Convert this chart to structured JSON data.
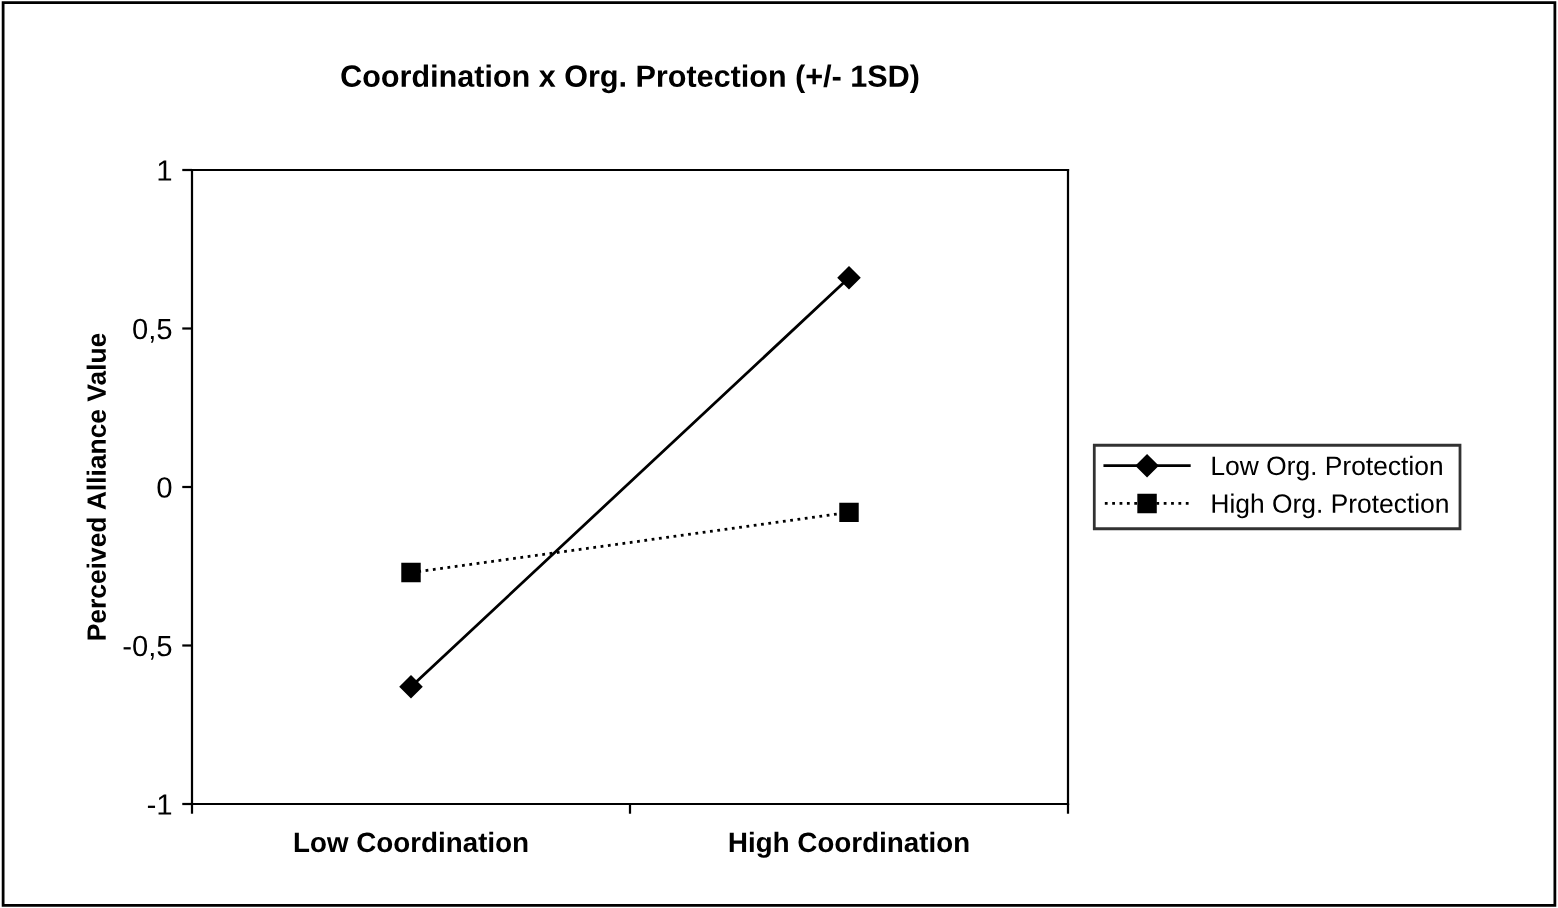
{
  "chart_data": {
    "type": "line",
    "title": "Coordination x Org. Protection (+/- 1SD)",
    "ylabel": "Perceived Alliance Value",
    "categories": [
      "Low Coordination",
      "High Coordination"
    ],
    "series": [
      {
        "name": "Low Org. Protection",
        "color": "#000000",
        "values": [
          -0.63,
          0.66
        ],
        "marker": "diamond",
        "line_style": "solid"
      },
      {
        "name": "High Org. Protection",
        "color": "#000000",
        "values": [
          -0.27,
          -0.08
        ],
        "marker": "square",
        "line_style": "dotted"
      }
    ],
    "ylim": [
      -1,
      1
    ],
    "yticks": [
      {
        "value": -1,
        "label": "-1"
      },
      {
        "value": -0.5,
        "label": "-0,5"
      },
      {
        "value": 0,
        "label": "0"
      },
      {
        "value": 0.5,
        "label": "0,5"
      },
      {
        "value": 1,
        "label": "1"
      }
    ],
    "grid": false,
    "legend": "right"
  }
}
